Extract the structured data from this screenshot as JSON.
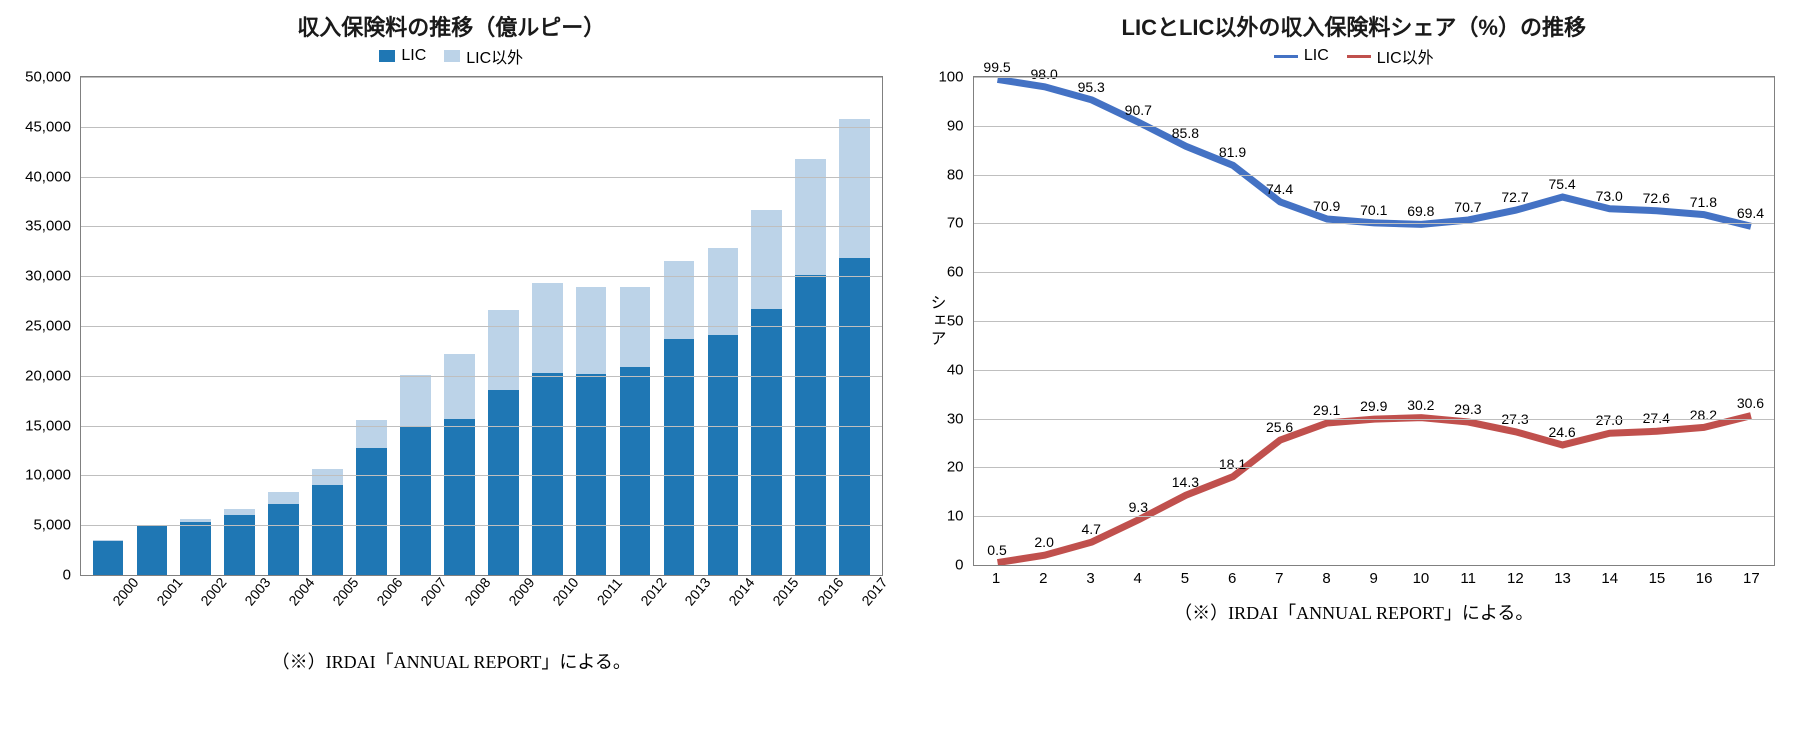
{
  "bar_chart": {
    "type": "stacked-bar",
    "title": "収入保険料の推移（億ルピー）",
    "legend": [
      {
        "label": "LIC",
        "color": "#1f77b4"
      },
      {
        "label": "LIC以外",
        "color": "#bcd3e8"
      }
    ],
    "years": [
      "2000",
      "2001",
      "2002",
      "2003",
      "2004",
      "2005",
      "2006",
      "2007",
      "2008",
      "2009",
      "2010",
      "2011",
      "2012",
      "2013",
      "2014",
      "2015",
      "2016",
      "2017"
    ],
    "lic": [
      3450,
      4900,
      5350,
      6000,
      7100,
      9000,
      12800,
      15000,
      15700,
      18600,
      20300,
      20200,
      20900,
      23700,
      24100,
      26700,
      30100,
      31800
    ],
    "lic_other": [
      20,
      100,
      260,
      600,
      1200,
      1600,
      2800,
      5100,
      6500,
      8000,
      9000,
      8700,
      8000,
      7800,
      8700,
      9900,
      11700,
      14000
    ],
    "ylim": [
      0,
      50000
    ],
    "ytick_step": 5000,
    "yticks": [
      "0",
      "5,000",
      "10,000",
      "15,000",
      "20,000",
      "25,000",
      "30,000",
      "35,000",
      "40,000",
      "45,000",
      "50,000"
    ],
    "grid_color": "#bfbfbf",
    "background_color": "#ffffff",
    "footnote": "（※）IRDAI「ANNUAL REPORT」による。"
  },
  "line_chart": {
    "type": "line",
    "title": "LICとLIC以外の収入保険料シェア（%）の推移",
    "y_axis_label": "シェア",
    "legend": [
      {
        "label": "LIC",
        "color": "#4472c4",
        "width": 3
      },
      {
        "label": "LIC以外",
        "color": "#c0504d",
        "width": 3
      }
    ],
    "x": [
      1,
      2,
      3,
      4,
      5,
      6,
      7,
      8,
      9,
      10,
      11,
      12,
      13,
      14,
      15,
      16,
      17
    ],
    "lic": [
      99.5,
      98.0,
      95.3,
      90.7,
      85.8,
      81.9,
      74.4,
      70.9,
      70.1,
      69.8,
      70.7,
      72.7,
      75.4,
      73.0,
      72.6,
      71.8,
      69.4
    ],
    "lic_other": [
      0.5,
      2.0,
      4.7,
      9.3,
      14.3,
      18.1,
      25.6,
      29.1,
      29.9,
      30.2,
      29.3,
      27.3,
      24.6,
      27.0,
      27.4,
      28.2,
      30.6
    ],
    "ylim": [
      0,
      100
    ],
    "ytick_step": 10,
    "yticks": [
      "0",
      "10",
      "20",
      "30",
      "40",
      "50",
      "60",
      "70",
      "80",
      "90",
      "100"
    ],
    "grid_color": "#bfbfbf",
    "label_fontsize": 14,
    "label_color": "#000000",
    "footnote": "（※）IRDAI「ANNUAL REPORT」による。"
  }
}
